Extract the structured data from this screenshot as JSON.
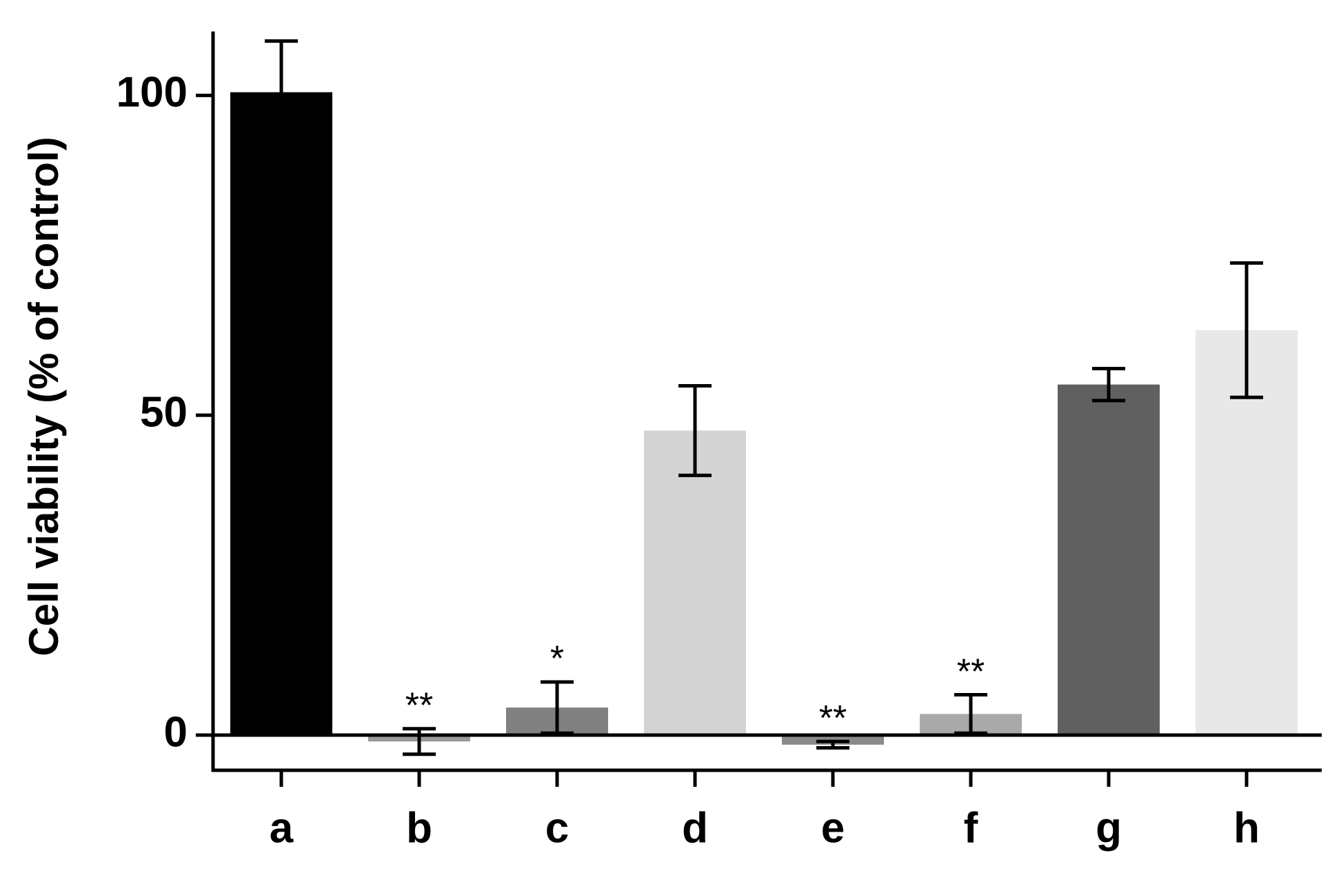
{
  "chart_data": {
    "type": "bar",
    "y_label": "Cell viability (% of control)",
    "categories": [
      "a",
      "b",
      "c",
      "d",
      "e",
      "f",
      "g",
      "h"
    ],
    "values": [
      100.5,
      -1,
      4.3,
      47.6,
      -1.5,
      3.3,
      54.8,
      63.3
    ],
    "errors": [
      8,
      2,
      4,
      7,
      0.5,
      3,
      2.5,
      10.5
    ],
    "colors": [
      "#000000",
      "#9a9a9a",
      "#808080",
      "#d3d3d3",
      "#8a8a8a",
      "#a9a9a9",
      "#606060",
      "#e8e8e8"
    ],
    "annotations": [
      null,
      "**",
      "*",
      null,
      "**",
      "**",
      null,
      null
    ],
    "ylim": [
      -5.5,
      110
    ],
    "yticks": [
      0,
      50,
      100
    ],
    "grid": false
  }
}
